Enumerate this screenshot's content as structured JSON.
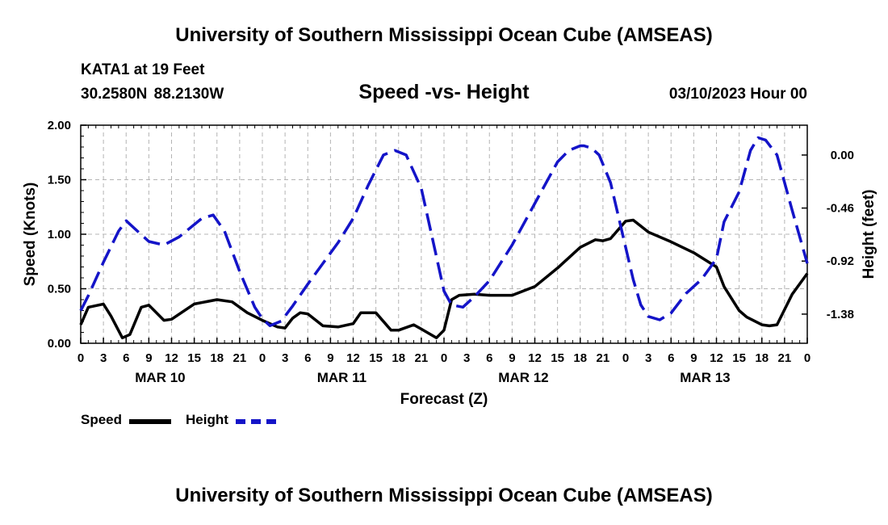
{
  "header": {
    "title": "University of Southern Mississippi Ocean Cube (AMSEAS)",
    "station": "KATA1 at 19 Feet",
    "coords": "30.2580N  88.2130W",
    "subtitle": "Speed -vs- Height",
    "date": "03/10/2023 Hour 00"
  },
  "footer": {
    "title": "University of Southern Mississippi Ocean Cube (AMSEAS)"
  },
  "legend": {
    "speed_label": "Speed",
    "height_label": "Height"
  },
  "colors": {
    "speed": "#000000",
    "height": "#1414c8",
    "grid": "#b4b4b4"
  },
  "chart_data": {
    "type": "line",
    "title": "Speed -vs- Height",
    "xlabel": "Forecast (Z)",
    "ylabel": "Speed (Knots)",
    "y2label": "Height (feet)",
    "x_unit": "hours from 03/10/2023 00Z",
    "xlim": [
      0,
      96
    ],
    "ylim": [
      0,
      2.0
    ],
    "y2lim": [
      -1.6329,
      0.2588
    ],
    "x_ticks": [
      0,
      3,
      6,
      9,
      12,
      15,
      18,
      21,
      24,
      27,
      30,
      33,
      36,
      39,
      42,
      45,
      48,
      51,
      54,
      57,
      60,
      63,
      66,
      69,
      72,
      75,
      78,
      81,
      84,
      87,
      90,
      93,
      96
    ],
    "x_tick_labels": [
      "0",
      "3",
      "6",
      "9",
      "12",
      "15",
      "18",
      "21",
      "0",
      "3",
      "6",
      "9",
      "12",
      "15",
      "18",
      "21",
      "0",
      "3",
      "6",
      "9",
      "12",
      "15",
      "18",
      "21",
      "0",
      "3",
      "6",
      "9",
      "12",
      "15",
      "18",
      "21",
      "0"
    ],
    "day_labels": [
      {
        "label": "MAR 10",
        "x": 10.5
      },
      {
        "label": "MAR 11",
        "x": 34.5
      },
      {
        "label": "MAR 12",
        "x": 58.5
      },
      {
        "label": "MAR 13",
        "x": 82.5
      }
    ],
    "y_ticks": [
      0,
      0.5,
      1.0,
      1.5,
      2.0
    ],
    "y_tick_labels": [
      "0.00",
      "0.50",
      "1.00",
      "1.50",
      "2.00"
    ],
    "y2_ticks": [
      0.0,
      -0.46,
      -0.92,
      -1.38
    ],
    "y2_tick_labels": [
      "0.00",
      "-0.46",
      "-0.92",
      "-1.38"
    ],
    "series": [
      {
        "name": "Speed",
        "axis": "left",
        "style": "solid",
        "x": [
          0,
          1,
          3,
          4,
          5.5,
          6.5,
          8,
          9,
          11,
          12,
          15,
          18,
          20,
          22,
          24,
          26,
          27,
          28,
          29,
          30,
          32,
          34,
          36,
          37,
          39,
          41,
          42,
          44,
          45,
          47,
          48,
          49,
          50,
          52,
          54,
          57,
          60,
          63,
          66,
          68,
          69,
          70,
          72,
          73,
          75,
          78,
          81,
          84,
          85,
          87,
          88,
          90,
          91,
          92,
          94,
          96
        ],
        "y": [
          0.17,
          0.33,
          0.36,
          0.25,
          0.05,
          0.08,
          0.33,
          0.35,
          0.21,
          0.22,
          0.36,
          0.4,
          0.38,
          0.28,
          0.21,
          0.15,
          0.14,
          0.23,
          0.28,
          0.27,
          0.16,
          0.15,
          0.18,
          0.28,
          0.28,
          0.12,
          0.12,
          0.17,
          0.13,
          0.05,
          0.12,
          0.4,
          0.44,
          0.45,
          0.44,
          0.44,
          0.52,
          0.69,
          0.88,
          0.95,
          0.94,
          0.96,
          1.12,
          1.13,
          1.02,
          0.93,
          0.83,
          0.7,
          0.52,
          0.3,
          0.24,
          0.17,
          0.16,
          0.17,
          0.45,
          0.64
        ]
      },
      {
        "name": "Height",
        "axis": "right",
        "style": "dashed",
        "x": [
          0,
          1,
          3,
          5,
          6,
          7,
          9,
          11,
          13,
          16,
          17.5,
          19,
          21,
          23,
          24,
          25,
          26.5,
          28,
          30,
          32,
          34,
          36,
          38,
          40,
          41.5,
          43,
          45,
          47,
          48,
          49,
          50.5,
          52,
          54,
          57,
          60,
          63,
          64.5,
          66,
          66.5,
          67.5,
          68.5,
          70,
          72,
          73,
          74,
          75,
          76.5,
          78,
          80,
          82,
          84,
          85,
          87,
          88.5,
          89.5,
          90.5,
          92,
          94,
          96
        ],
        "y": [
          -1.35,
          -1.22,
          -0.93,
          -0.66,
          -0.57,
          -0.63,
          -0.75,
          -0.78,
          -0.71,
          -0.55,
          -0.52,
          -0.66,
          -1.01,
          -1.32,
          -1.42,
          -1.48,
          -1.44,
          -1.31,
          -1.12,
          -0.94,
          -0.76,
          -0.55,
          -0.26,
          0.0,
          0.04,
          0.0,
          -0.29,
          -0.88,
          -1.18,
          -1.3,
          -1.32,
          -1.23,
          -1.09,
          -0.78,
          -0.42,
          -0.06,
          0.04,
          0.08,
          0.08,
          0.06,
          0.0,
          -0.24,
          -0.8,
          -1.08,
          -1.3,
          -1.4,
          -1.43,
          -1.37,
          -1.2,
          -1.08,
          -0.9,
          -0.58,
          -0.32,
          0.04,
          0.15,
          0.13,
          0.0,
          -0.48,
          -0.94
        ]
      }
    ]
  }
}
